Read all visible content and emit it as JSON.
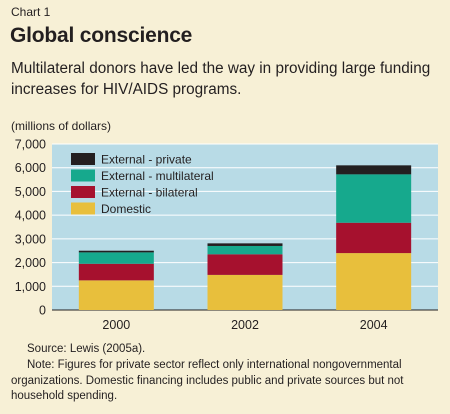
{
  "header": {
    "chart_label": "Chart 1",
    "title": "Global conscience",
    "subtitle": "Multilateral donors have led the way in providing large funding increases for HIV/AIDS programs."
  },
  "footer": {
    "source": "Source: Lewis (2005a).",
    "note": "Note: Figures for private sector reflect only international nongovernmental organizations. Domestic financing includes public and private sources but not household spending."
  },
  "chart_data": {
    "type": "bar",
    "stacked": true,
    "categories": [
      "2000",
      "2002",
      "2004"
    ],
    "ylabel": "(millions of dollars)",
    "ylim": [
      0,
      7000
    ],
    "yticks": [
      0,
      1000,
      2000,
      3000,
      4000,
      5000,
      6000,
      7000
    ],
    "ytick_labels": [
      "0",
      "1,000",
      "2,000",
      "3,000",
      "4,000",
      "5,000",
      "6,000",
      "7,000"
    ],
    "grid": true,
    "legend_position": "top-left",
    "series": [
      {
        "name": "Domestic",
        "color": "#e8bf3c",
        "values": [
          1250,
          1480,
          2400
        ]
      },
      {
        "name": "External - bilateral",
        "color": "#a6112e",
        "values": [
          700,
          870,
          1280
        ]
      },
      {
        "name": "External - multilateral",
        "color": "#16a98d",
        "values": [
          480,
          350,
          2040
        ]
      },
      {
        "name": "External - private",
        "color": "#231f20",
        "values": [
          70,
          110,
          380
        ]
      }
    ]
  }
}
